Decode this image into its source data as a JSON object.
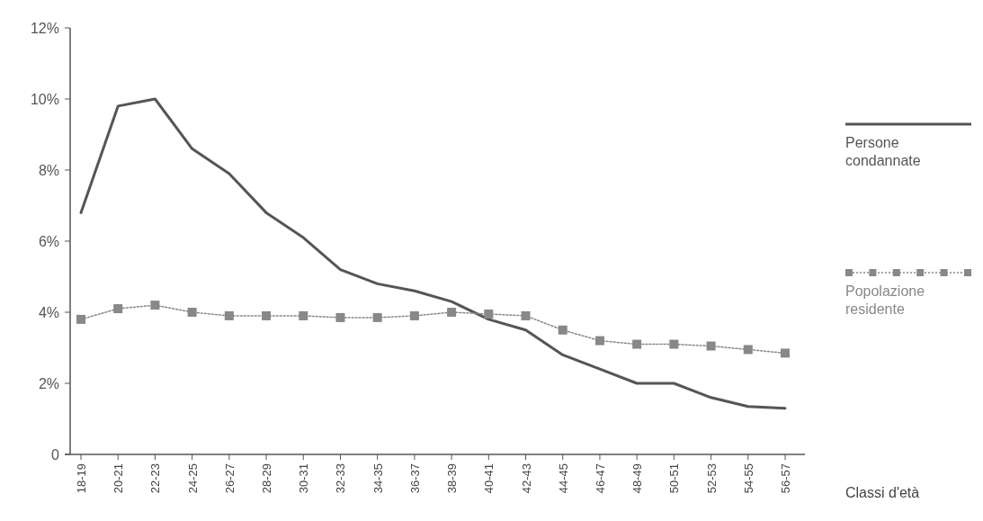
{
  "chart_data": {
    "type": "line",
    "xlabel": "Classi d'età",
    "categories": [
      "18-19",
      "20-21",
      "22-23",
      "24-25",
      "26-27",
      "28-29",
      "30-31",
      "32-33",
      "34-35",
      "36-37",
      "38-39",
      "40-41",
      "42-43",
      "44-45",
      "46-47",
      "48-49",
      "50-51",
      "52-53",
      "54-55",
      "56-57"
    ],
    "series": [
      {
        "name": "Persone condannate",
        "color": "#555555",
        "marker": "none",
        "line_style": "solid",
        "values": [
          6.8,
          9.8,
          10.0,
          8.6,
          7.9,
          6.8,
          6.1,
          5.2,
          4.8,
          4.6,
          4.3,
          3.8,
          3.5,
          2.8,
          2.4,
          2.0,
          2.0,
          1.6,
          1.35,
          1.3
        ]
      },
      {
        "name": "Popolazione residente",
        "color": "#888888",
        "marker": "square",
        "line_style": "dotted",
        "values": [
          3.8,
          4.1,
          4.2,
          4.0,
          3.9,
          3.9,
          3.9,
          3.85,
          3.85,
          3.9,
          4.0,
          3.95,
          3.9,
          3.5,
          3.2,
          3.1,
          3.1,
          3.05,
          2.95,
          2.85
        ]
      }
    ],
    "ylim": [
      0,
      12
    ],
    "yticks": [
      {
        "value": 0,
        "label": "0"
      },
      {
        "value": 2,
        "label": "2%"
      },
      {
        "value": 4,
        "label": "4%"
      },
      {
        "value": 6,
        "label": "6%"
      },
      {
        "value": 8,
        "label": "8%"
      },
      {
        "value": 10,
        "label": "10%"
      },
      {
        "value": 12,
        "label": "12%"
      }
    ],
    "grid": false,
    "legend": "right"
  }
}
